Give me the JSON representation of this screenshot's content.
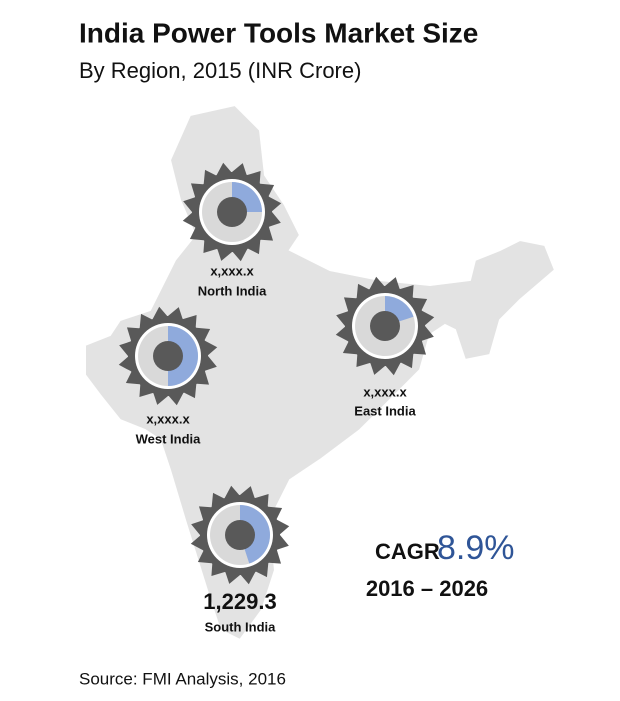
{
  "title": "India Power Tools Market Size",
  "subtitle": "By Region, 2015 (INR Crore)",
  "regions": [
    {
      "name": "North India",
      "value": "x,xxx.x",
      "share": 25
    },
    {
      "name": "West India",
      "value": "x,xxx.x",
      "share": 50
    },
    {
      "name": "East India",
      "value": "x,xxx.x",
      "share": 20
    },
    {
      "name": "South India",
      "value": "1,229.3",
      "share": 45
    }
  ],
  "cagr": {
    "label": "CAGR",
    "value": "8.9%",
    "period": "2016 – 2026"
  },
  "source": "Source: FMI Analysis, 2016"
}
